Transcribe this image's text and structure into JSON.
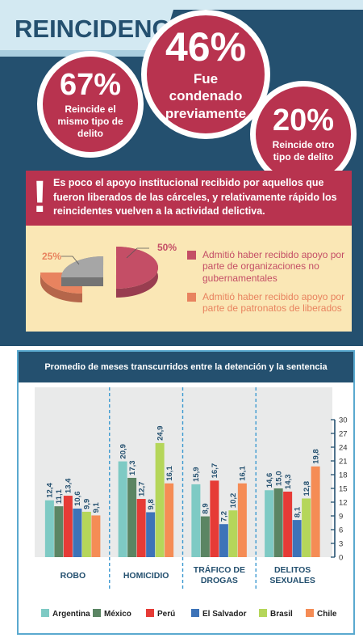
{
  "header": {
    "title": "REINCIDENCIA"
  },
  "stats": [
    {
      "value": "67%",
      "text": "Reincide el mismo tipo de delito"
    },
    {
      "value": "46%",
      "text": "Fue condenado previamente"
    },
    {
      "value": "20%",
      "text": "Reincide otro tipo de delito"
    }
  ],
  "banner": {
    "icon": "exclamation-icon",
    "text": "Es poco el apoyo institucional recibido por aquellos que fueron liberados de las cárceles, y relativamente rápido los reincidentes vuelven a la actividad delictiva."
  },
  "chart_data": [
    {
      "type": "pie",
      "labels": [
        "Admitió haber recibido apoyo por parte de organizaciones no gubernamentales",
        "Admitió haber recibido apoyo por parte de patronatos de liberados",
        ""
      ],
      "values": [
        50,
        25,
        25
      ],
      "value_labels": [
        "50%",
        "25%",
        ""
      ],
      "colors": [
        "#c44e66",
        "#e8835f",
        "#a6a6a6"
      ],
      "legend_placement": "right"
    },
    {
      "type": "bar",
      "title": "Promedio de meses transcurridos entre la detención y la sentencia",
      "categories": [
        "ROBO",
        "HOMICIDIO",
        "TRÁFICO DE DROGAS",
        "DELITOS SEXUALES"
      ],
      "series": [
        {
          "name": "Argentina",
          "color": "#7ecac4",
          "values": [
            12.4,
            20.9,
            15.9,
            14.6
          ],
          "labels": [
            "12,4",
            "20,9",
            "15,9",
            "14,6"
          ]
        },
        {
          "name": "México",
          "color": "#5b8563",
          "values": [
            11.1,
            17.3,
            8.9,
            15.0
          ],
          "labels": [
            "11,1",
            "17,3",
            "8,9",
            "15,0"
          ]
        },
        {
          "name": "Perú",
          "color": "#e63b36",
          "values": [
            13.4,
            12.7,
            16.7,
            14.3
          ],
          "labels": [
            "13,4",
            "12,7",
            "16,7",
            "14,3"
          ]
        },
        {
          "name": "El Salvador",
          "color": "#3d73b8",
          "values": [
            10.6,
            9.8,
            7.2,
            8.1
          ],
          "labels": [
            "10,6",
            "9,8",
            "7,2",
            "8,1"
          ]
        },
        {
          "name": "Brasil",
          "color": "#b5d65a",
          "values": [
            9.9,
            24.9,
            10.2,
            12.8
          ],
          "labels": [
            "9,9",
            "24,9",
            "10,2",
            "12,8"
          ]
        },
        {
          "name": "Chile",
          "color": "#f58c55",
          "values": [
            9.1,
            16.1,
            16.1,
            19.8
          ],
          "labels": [
            "9,1",
            "16,1",
            "16,1",
            "19,8"
          ]
        }
      ],
      "ylim": [
        0,
        30
      ],
      "yticks": [
        0,
        3,
        6,
        9,
        12,
        15,
        18,
        21,
        24,
        27,
        30
      ],
      "grid": false,
      "legend_placement": "bottom"
    }
  ]
}
